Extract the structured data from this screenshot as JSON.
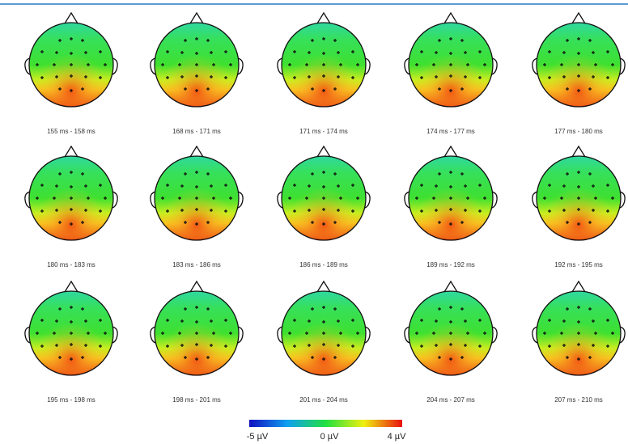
{
  "panels": [
    {
      "label": "155 ms - 158 ms"
    },
    {
      "label": "168 ms - 171 ms"
    },
    {
      "label": "171 ms - 174 ms"
    },
    {
      "label": "174 ms - 177 ms"
    },
    {
      "label": "177 ms - 180 ms"
    },
    {
      "label": "180 ms - 183 ms"
    },
    {
      "label": "183 ms - 186 ms"
    },
    {
      "label": "186 ms - 189 ms"
    },
    {
      "label": "189 ms - 192 ms"
    },
    {
      "label": "192 ms - 195 ms"
    },
    {
      "label": "195 ms - 198 ms"
    },
    {
      "label": "198 ms - 201 ms"
    },
    {
      "label": "201 ms - 204 ms"
    },
    {
      "label": "204 ms - 207 ms"
    },
    {
      "label": "207 ms - 210 ms"
    }
  ],
  "colorbar": {
    "labels": [
      "-5 µV",
      "0 µV",
      "4 µV"
    ]
  }
}
